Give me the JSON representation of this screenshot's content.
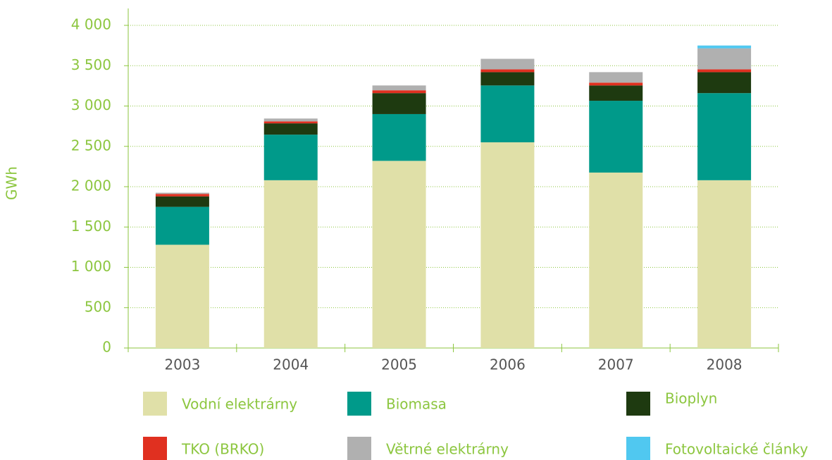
{
  "chart_data": {
    "type": "stacked_bar",
    "y_label": "GWh",
    "categories": [
      "2003",
      "2004",
      "2005",
      "2006",
      "2007",
      "2008"
    ],
    "series": [
      {
        "name": "Vodní elektrárny",
        "color": "#e0e0a8",
        "values": [
          1280,
          2080,
          2320,
          2550,
          2175,
          2080
        ]
      },
      {
        "name": "Biomasa",
        "color": "#009a8a",
        "values": [
          470,
          565,
          580,
          705,
          890,
          1080
        ]
      },
      {
        "name": "Bioplyn",
        "color": "#1e3a10",
        "values": [
          130,
          140,
          260,
          165,
          190,
          260
        ]
      },
      {
        "name": "TKO (BRKO)",
        "color": "#e03020",
        "values": [
          30,
          25,
          35,
          35,
          35,
          35
        ]
      },
      {
        "name": "Větrné elektrárny",
        "color": "#b0b0b0",
        "values": [
          15,
          35,
          60,
          130,
          130,
          260
        ]
      },
      {
        "name": "Fotovoltaické články",
        "color": "#50c8f0",
        "values": [
          0,
          0,
          0,
          0,
          0,
          35
        ]
      }
    ],
    "ylim": [
      0,
      4000
    ],
    "yticks": [
      0,
      500,
      {
        "value": 1000,
        "label": "1 000"
      },
      {
        "value": 1500,
        "label": "1 500"
      },
      {
        "value": 2000,
        "label": "2 000"
      },
      {
        "value": 2500,
        "label": "2 500"
      },
      {
        "value": 3000,
        "label": "3 000"
      },
      {
        "value": 3500,
        "label": "3 500"
      },
      {
        "value": 4000,
        "label": "4 000"
      }
    ],
    "grid": true
  }
}
